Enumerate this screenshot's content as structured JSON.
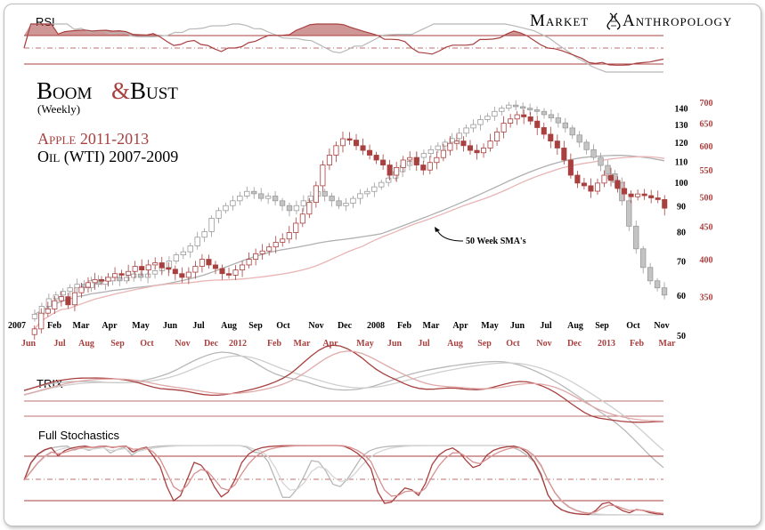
{
  "header": {
    "brand_left": "Market",
    "brand_right": "Anthropology",
    "title_a": "Boom",
    "title_amp": "&",
    "title_b": "Bust",
    "subtitle": "(Weekly)",
    "series_a_label": "Apple 2011-2013",
    "series_b_label": "Oil (WTI) 2007-2009"
  },
  "panels": {
    "rsi": "RSI",
    "trix": "TRIX",
    "stoch": "Full Stochastics"
  },
  "annotation": "50 Week SMA's",
  "colors": {
    "apple": "#a8403f",
    "oil": "#b8b8b8",
    "panel_line": "#a8403f",
    "pink_sma": "#e8b4b4",
    "text": "#000000"
  },
  "chart_data": {
    "type": "candlestick",
    "axis_left_inner": [
      "140",
      "130",
      "120",
      "110",
      "100",
      "90",
      "80",
      "70",
      "60",
      "50"
    ],
    "axis_right_outer": [
      "700",
      "650",
      "600",
      "550",
      "500",
      "450",
      "400",
      "350"
    ],
    "x_top_labels": [
      "2007",
      "Feb",
      "Mar",
      "Apr",
      "May",
      "Jun",
      "Jul",
      "Aug",
      "Sep",
      "Oct",
      "Nov",
      "Dec",
      "2008",
      "Feb",
      "Mar",
      "Apr",
      "May",
      "Jun",
      "Jul",
      "Aug",
      "Sep",
      "Oct",
      "Nov"
    ],
    "x_bottom_labels": [
      "Jun",
      "Jul",
      "Aug",
      "Sep",
      "Oct",
      "Nov",
      "Dec",
      "2012",
      "Feb",
      "Mar",
      "Apr",
      "May",
      "Jun",
      "Jul",
      "Aug",
      "Sep",
      "Oct",
      "Nov",
      "Dec",
      "2013",
      "Feb",
      "Mar"
    ],
    "series": [
      {
        "name": "Apple 2011-2013",
        "scale": "right",
        "close": [
          312,
          330,
          335,
          345,
          350,
          340,
          355,
          362,
          368,
          372,
          370,
          375,
          380,
          378,
          383,
          390,
          385,
          392,
          395,
          388,
          386,
          380,
          375,
          382,
          390,
          400,
          392,
          387,
          380,
          378,
          385,
          392,
          400,
          408,
          412,
          418,
          425,
          430,
          440,
          455,
          470,
          490,
          520,
          560,
          580,
          600,
          615,
          612,
          600,
          590,
          580,
          570,
          560,
          540,
          555,
          570,
          575,
          560,
          550,
          565,
          575,
          590,
          605,
          610,
          600,
          590,
          585,
          595,
          610,
          630,
          650,
          660,
          670,
          665,
          655,
          640,
          625,
          610,
          595,
          570,
          540,
          525,
          520,
          510,
          525,
          540,
          530,
          515,
          505,
          500,
          505,
          502,
          498,
          495,
          480
        ]
      },
      {
        "name": "Oil (WTI) 2007-2009",
        "scale": "left",
        "close": [
          55,
          57,
          59,
          60,
          61,
          62,
          63,
          62,
          64,
          63,
          64,
          65,
          64,
          65,
          66,
          65,
          66,
          67,
          68,
          70,
          72,
          73,
          75,
          78,
          80,
          85,
          88,
          90,
          92,
          94,
          96,
          95,
          93,
          94,
          92,
          90,
          88,
          90,
          92,
          94,
          96,
          94,
          92,
          90,
          91,
          93,
          95,
          96,
          98,
          100,
          102,
          105,
          108,
          110,
          112,
          114,
          116,
          118,
          120,
          122,
          125,
          128,
          130,
          133,
          135,
          138,
          140,
          142,
          141,
          140,
          139,
          138,
          136,
          134,
          131,
          128,
          124,
          120,
          116,
          112,
          108,
          104,
          100,
          92,
          82,
          74,
          68,
          64,
          62,
          60
        ]
      }
    ],
    "sma_50w": {
      "apple_scale_start": 388,
      "apple_scale_end": 548,
      "oil_scale_start": 70,
      "oil_scale_end": 102
    }
  }
}
